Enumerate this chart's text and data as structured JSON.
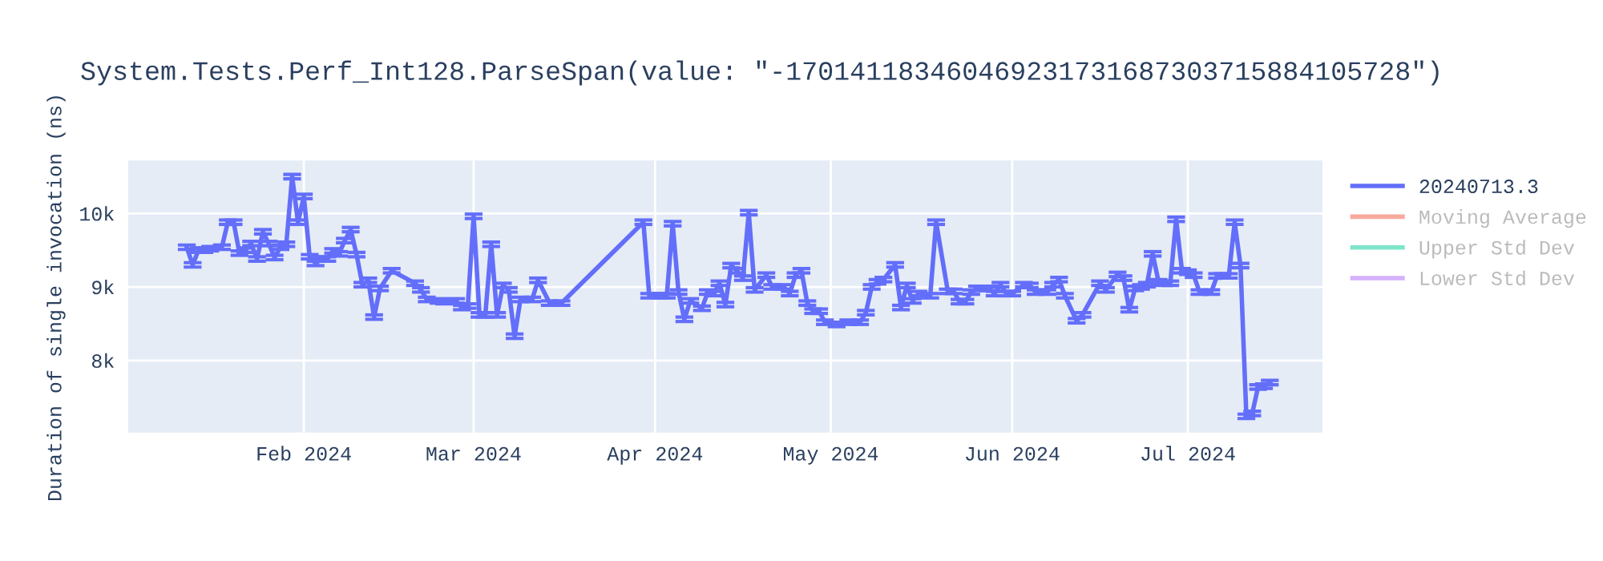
{
  "chart_data": {
    "type": "line",
    "title": "System.Tests.Perf_Int128.ParseSpan(value: \"-170141183460469231731687303715884105728\")",
    "ylabel": "Duration of single invocation (ns)",
    "xlim": [
      "2024-01-02",
      "2024-07-24"
    ],
    "xticks": [
      {
        "value": "2024-02-01",
        "label": "Feb 2024"
      },
      {
        "value": "2024-03-01",
        "label": "Mar 2024"
      },
      {
        "value": "2024-04-01",
        "label": "Apr 2024"
      },
      {
        "value": "2024-05-01",
        "label": "May 2024"
      },
      {
        "value": "2024-06-01",
        "label": "Jun 2024"
      },
      {
        "value": "2024-07-01",
        "label": "Jul 2024"
      }
    ],
    "ylim": [
      7020,
      10720
    ],
    "yticks": [
      {
        "value": 8000,
        "label": "8k"
      },
      {
        "value": 9000,
        "label": "9k"
      },
      {
        "value": 10000,
        "label": "10k"
      }
    ],
    "grid": true,
    "legend": "top right",
    "marker": "none",
    "line_style": "solid",
    "x": [
      "2024-01-12",
      "2024-01-13",
      "2024-01-14",
      "2024-01-15",
      "2024-01-16",
      "2024-01-18",
      "2024-01-19",
      "2024-01-20",
      "2024-01-21",
      "2024-01-22",
      "2024-01-23",
      "2024-01-24",
      "2024-01-25",
      "2024-01-26",
      "2024-01-27",
      "2024-01-28",
      "2024-01-29",
      "2024-01-30",
      "2024-01-31",
      "2024-02-01",
      "2024-02-02",
      "2024-02-03",
      "2024-02-04",
      "2024-02-05",
      "2024-02-06",
      "2024-02-07",
      "2024-02-08",
      "2024-02-09",
      "2024-02-10",
      "2024-02-11",
      "2024-02-12",
      "2024-02-13",
      "2024-02-14",
      "2024-02-16",
      "2024-02-20",
      "2024-02-21",
      "2024-02-22",
      "2024-02-24",
      "2024-02-25",
      "2024-02-27",
      "2024-02-28",
      "2024-02-29",
      "2024-03-01",
      "2024-03-02",
      "2024-03-03",
      "2024-03-04",
      "2024-03-05",
      "2024-03-06",
      "2024-03-07",
      "2024-03-08",
      "2024-03-09",
      "2024-03-11",
      "2024-03-12",
      "2024-03-14",
      "2024-03-16",
      "2024-03-30",
      "2024-03-31",
      "2024-04-02",
      "2024-04-03",
      "2024-04-04",
      "2024-04-05",
      "2024-04-06",
      "2024-04-07",
      "2024-04-09",
      "2024-04-10",
      "2024-04-11",
      "2024-04-12",
      "2024-04-13",
      "2024-04-14",
      "2024-04-15",
      "2024-04-16",
      "2024-04-17",
      "2024-04-18",
      "2024-04-20",
      "2024-04-21",
      "2024-04-23",
      "2024-04-24",
      "2024-04-25",
      "2024-04-26",
      "2024-04-27",
      "2024-04-28",
      "2024-04-29",
      "2024-04-30",
      "2024-05-02",
      "2024-05-04",
      "2024-05-06",
      "2024-05-07",
      "2024-05-08",
      "2024-05-09",
      "2024-05-10",
      "2024-05-12",
      "2024-05-13",
      "2024-05-14",
      "2024-05-15",
      "2024-05-16",
      "2024-05-18",
      "2024-05-19",
      "2024-05-21",
      "2024-05-22",
      "2024-05-23",
      "2024-05-24",
      "2024-05-25",
      "2024-05-26",
      "2024-05-28",
      "2024-05-29",
      "2024-05-30",
      "2024-05-31",
      "2024-06-01",
      "2024-06-03",
      "2024-06-04",
      "2024-06-05",
      "2024-06-07",
      "2024-06-08",
      "2024-06-09",
      "2024-06-10",
      "2024-06-12",
      "2024-06-13",
      "2024-06-16",
      "2024-06-17",
      "2024-06-19",
      "2024-06-20",
      "2024-06-21",
      "2024-06-22",
      "2024-06-23",
      "2024-06-24",
      "2024-06-25",
      "2024-06-26",
      "2024-06-27",
      "2024-06-28",
      "2024-06-29",
      "2024-06-30",
      "2024-07-01",
      "2024-07-02",
      "2024-07-03",
      "2024-07-05",
      "2024-07-06",
      "2024-07-07",
      "2024-07-08",
      "2024-07-09",
      "2024-07-10",
      "2024-07-11",
      "2024-07-12",
      "2024-07-13",
      "2024-07-14",
      "2024-07-15"
    ],
    "series": [
      {
        "name": "20240713.3",
        "color": "#636efa",
        "values": [
          9540,
          9300,
          9500,
          9500,
          9520,
          9540,
          9880,
          9880,
          9460,
          9500,
          9590,
          9380,
          9750,
          9590,
          9400,
          9540,
          9580,
          10500,
          9880,
          10230,
          9410,
          9320,
          9380,
          9380,
          9490,
          9450,
          9630,
          9780,
          9440,
          9030,
          9090,
          8590,
          8980,
          9220,
          9050,
          8960,
          8830,
          8810,
          8800,
          8810,
          8720,
          8740,
          9960,
          8620,
          8620,
          9580,
          8620,
          9020,
          8960,
          8330,
          8830,
          8830,
          9090,
          8780,
          8780,
          9880,
          8880,
          8880,
          8880,
          9860,
          8930,
          8560,
          8810,
          8710,
          8930,
          8910,
          9050,
          8760,
          9290,
          9220,
          9120,
          10010,
          8960,
          9160,
          9000,
          9000,
          8910,
          9160,
          9220,
          8780,
          8670,
          8670,
          8520,
          8490,
          8520,
          8520,
          8650,
          9000,
          9070,
          9100,
          9300,
          8720,
          9020,
          8810,
          8910,
          8880,
          9880,
          8940,
          8940,
          8800,
          8800,
          8930,
          8980,
          8980,
          8910,
          9030,
          8910,
          8910,
          9030,
          9020,
          8930,
          8930,
          9030,
          9100,
          8880,
          8540,
          8620,
          9050,
          8960,
          9170,
          9120,
          8690,
          8980,
          9000,
          9030,
          9450,
          9070,
          9050,
          9050,
          9920,
          9220,
          9200,
          9160,
          8930,
          8930,
          9150,
          9150,
          9150,
          9880,
          9290,
          7240,
          7280,
          7640,
          7650,
          7700
        ],
        "errors": [
          30,
          30,
          30,
          30,
          30,
          30,
          30,
          30,
          30,
          30,
          30,
          30,
          30,
          30,
          30,
          30,
          30,
          30,
          30,
          30,
          30,
          30,
          30,
          30,
          30,
          30,
          30,
          30,
          30,
          30,
          30,
          30,
          30,
          30,
          30,
          30,
          30,
          30,
          30,
          30,
          30,
          30,
          30,
          30,
          30,
          30,
          30,
          30,
          30,
          30,
          30,
          30,
          30,
          30,
          30,
          30,
          30,
          30,
          30,
          30,
          30,
          30,
          30,
          30,
          30,
          30,
          30,
          30,
          30,
          30,
          30,
          30,
          30,
          30,
          30,
          30,
          30,
          30,
          30,
          30,
          30,
          30,
          30,
          30,
          30,
          30,
          30,
          30,
          30,
          30,
          30,
          30,
          30,
          30,
          30,
          30,
          30,
          30,
          30,
          30,
          30,
          30,
          30,
          30,
          30,
          30,
          30,
          30,
          30,
          30,
          30,
          30,
          30,
          30,
          30,
          30,
          30,
          30,
          30,
          30,
          30,
          30,
          30,
          30,
          30,
          30,
          30,
          30,
          30,
          30,
          30,
          30,
          30,
          30,
          30,
          30,
          30,
          30,
          30,
          30,
          30,
          30,
          30,
          30,
          30
        ]
      },
      {
        "name": "Moving Average",
        "color": "#ef553b",
        "values": [
          null,
          null,
          null,
          null,
          null,
          null,
          null,
          null,
          null,
          null,
          null,
          null,
          null,
          null,
          null,
          null,
          null,
          null,
          null,
          null,
          null,
          null,
          null,
          null,
          null,
          null,
          null,
          null,
          null,
          null,
          null,
          null,
          null,
          null,
          null,
          null,
          null,
          null,
          null,
          null,
          null,
          null,
          null,
          null,
          null,
          null,
          null,
          null,
          null,
          null,
          null,
          null,
          null,
          null,
          null,
          null,
          null,
          null,
          null,
          null,
          null,
          null,
          null,
          null,
          null,
          null,
          null,
          null,
          null,
          null,
          null,
          null,
          null,
          null,
          null,
          null,
          null,
          null,
          null,
          null,
          null,
          null,
          null,
          null,
          null,
          null,
          null,
          null,
          null,
          null,
          null,
          null,
          null,
          null,
          null,
          null,
          null,
          null,
          null,
          null,
          null,
          null,
          null,
          null,
          null,
          null,
          null,
          null,
          null,
          null,
          null,
          null,
          null,
          null,
          null,
          null,
          null,
          null,
          null,
          null,
          null,
          null,
          null,
          null,
          null,
          null,
          null,
          null,
          null,
          null,
          null,
          null,
          null,
          null,
          null,
          null,
          null,
          null,
          null,
          null,
          null,
          null,
          null,
          null,
          null
        ]
      },
      {
        "name": "Upper Std Dev",
        "color": "#00cc96",
        "values": [
          null,
          null,
          null,
          null,
          null,
          null,
          null,
          null,
          null,
          null,
          null,
          null,
          null,
          null,
          null,
          null,
          null,
          null,
          null,
          null,
          null,
          null,
          null,
          null,
          null,
          null,
          null,
          null,
          null,
          null,
          null,
          null,
          null,
          null,
          null,
          null,
          null,
          null,
          null,
          null,
          null,
          null,
          null,
          null,
          null,
          null,
          null,
          null,
          null,
          null,
          null,
          null,
          null,
          null,
          null,
          null,
          null,
          null,
          null,
          null,
          null,
          null,
          null,
          null,
          null,
          null,
          null,
          null,
          null,
          null,
          null,
          null,
          null,
          null,
          null,
          null,
          null,
          null,
          null,
          null,
          null,
          null,
          null,
          null,
          null,
          null,
          null,
          null,
          null,
          null,
          null,
          null,
          null,
          null,
          null,
          null,
          null,
          null,
          null,
          null,
          null,
          null,
          null,
          null,
          null,
          null,
          null,
          null,
          null,
          null,
          null,
          null,
          null,
          null,
          null,
          null,
          null,
          null,
          null,
          null,
          null,
          null,
          null,
          null,
          null,
          null,
          null,
          null,
          null,
          null,
          null,
          null,
          null,
          null,
          null,
          null,
          null,
          null,
          null,
          null,
          null,
          null,
          null,
          null,
          null
        ]
      },
      {
        "name": "Lower Std Dev",
        "color": "#ab63fa",
        "values": [
          null,
          null,
          null,
          null,
          null,
          null,
          null,
          null,
          null,
          null,
          null,
          null,
          null,
          null,
          null,
          null,
          null,
          null,
          null,
          null,
          null,
          null,
          null,
          null,
          null,
          null,
          null,
          null,
          null,
          null,
          null,
          null,
          null,
          null,
          null,
          null,
          null,
          null,
          null,
          null,
          null,
          null,
          null,
          null,
          null,
          null,
          null,
          null,
          null,
          null,
          null,
          null,
          null,
          null,
          null,
          null,
          null,
          null,
          null,
          null,
          null,
          null,
          null,
          null,
          null,
          null,
          null,
          null,
          null,
          null,
          null,
          null,
          null,
          null,
          null,
          null,
          null,
          null,
          null,
          null,
          null,
          null,
          null,
          null,
          null,
          null,
          null,
          null,
          null,
          null,
          null,
          null,
          null,
          null,
          null,
          null,
          null,
          null,
          null,
          null,
          null,
          null,
          null,
          null,
          null,
          null,
          null,
          null,
          null,
          null,
          null,
          null,
          null,
          null,
          null,
          null,
          null,
          null,
          null,
          null,
          null,
          null,
          null,
          null,
          null,
          null,
          null,
          null,
          null,
          null,
          null,
          null,
          null,
          null,
          null,
          null,
          null,
          null,
          null,
          null,
          null,
          null,
          null,
          null,
          null
        ]
      }
    ]
  }
}
